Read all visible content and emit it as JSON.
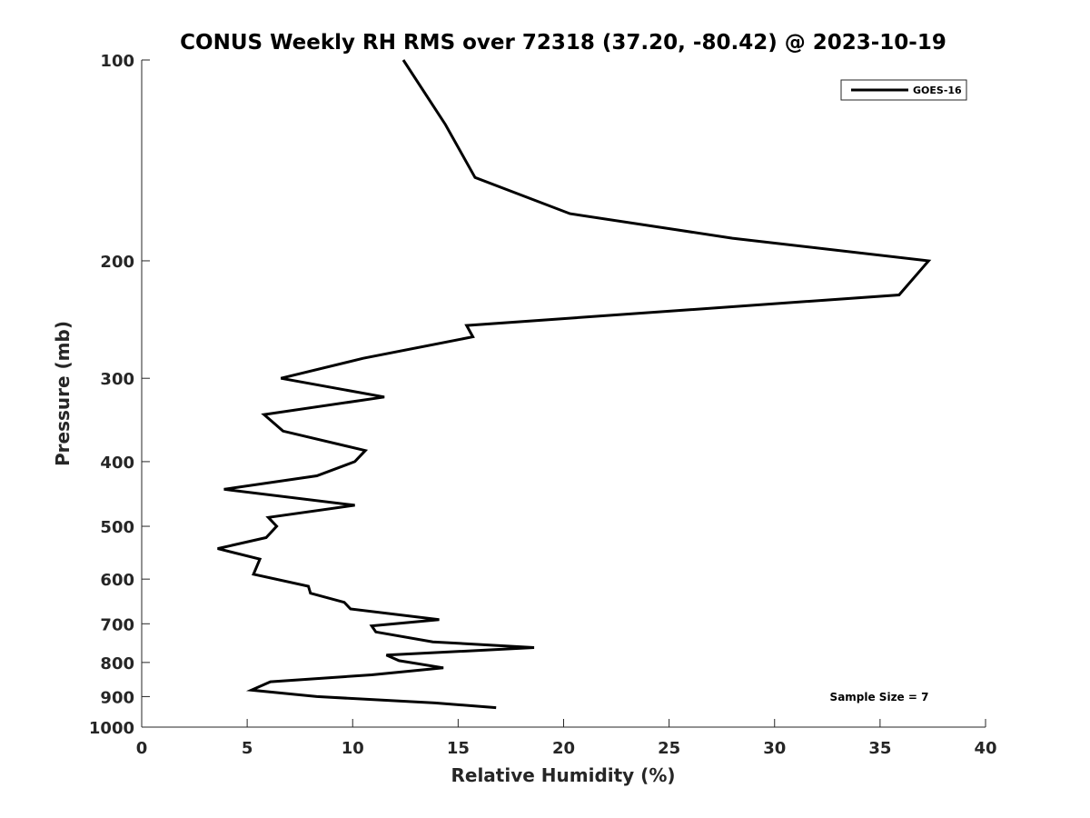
{
  "chart_data": {
    "type": "line",
    "title": "CONUS Weekly RH RMS over 72318 (37.20, -80.42) @ 2023-10-19",
    "xlabel": "Relative Humidity (%)",
    "ylabel": "Pressure (mb)",
    "xlim": [
      0,
      40
    ],
    "ylim": [
      100,
      1000
    ],
    "y_scale": "log",
    "y_reversed": true,
    "xticks": [
      0,
      5,
      10,
      15,
      20,
      25,
      30,
      35,
      40
    ],
    "yticks": [
      100,
      200,
      300,
      400,
      500,
      600,
      700,
      800,
      900,
      1000
    ],
    "grid": false,
    "legend_position": "top-right",
    "annotation": "Sample Size = 7",
    "series": [
      {
        "name": "GOES-16",
        "color": "#000000",
        "points": [
          [
            12.4,
            100
          ],
          [
            14.4,
            125
          ],
          [
            15.8,
            150
          ],
          [
            20.3,
            170
          ],
          [
            28.0,
            185
          ],
          [
            37.3,
            200
          ],
          [
            35.9,
            225
          ],
          [
            15.4,
            250
          ],
          [
            15.7,
            260
          ],
          [
            10.5,
            280
          ],
          [
            6.6,
            300
          ],
          [
            11.5,
            320
          ],
          [
            5.8,
            340
          ],
          [
            6.7,
            360
          ],
          [
            10.6,
            385
          ],
          [
            10.1,
            400
          ],
          [
            8.3,
            420
          ],
          [
            3.9,
            440
          ],
          [
            10.1,
            465
          ],
          [
            6.0,
            485
          ],
          [
            6.4,
            500
          ],
          [
            5.9,
            520
          ],
          [
            3.6,
            540
          ],
          [
            5.6,
            560
          ],
          [
            5.3,
            590
          ],
          [
            7.9,
            615
          ],
          [
            8.0,
            630
          ],
          [
            9.6,
            650
          ],
          [
            9.9,
            665
          ],
          [
            14.1,
            690
          ],
          [
            10.9,
            705
          ],
          [
            11.1,
            720
          ],
          [
            13.8,
            745
          ],
          [
            18.6,
            760
          ],
          [
            11.6,
            780
          ],
          [
            12.2,
            795
          ],
          [
            14.3,
            815
          ],
          [
            10.9,
            835
          ],
          [
            6.1,
            855
          ],
          [
            5.2,
            880
          ],
          [
            8.3,
            900
          ],
          [
            13.9,
            920
          ],
          [
            16.8,
            935
          ]
        ]
      }
    ]
  }
}
